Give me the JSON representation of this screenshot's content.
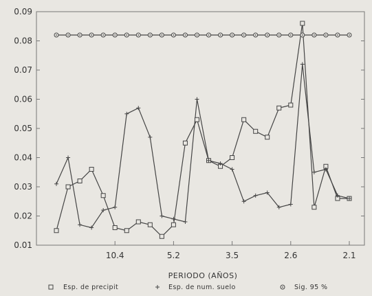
{
  "chart_data": {
    "type": "line",
    "xlabel": "PERIODO (AÑOS)",
    "ylabel": "",
    "ylim": [
      0.01,
      0.09
    ],
    "yticks": [
      "0.01",
      "0.02",
      "0.03",
      "0.04",
      "0.05",
      "0.06",
      "0.07",
      "0.08",
      "0.09"
    ],
    "xlim": [
      0,
      1
    ],
    "x_tick_labels": [
      {
        "label": "10.4",
        "pos": 0.2
      },
      {
        "label": "5.2",
        "pos": 0.4
      },
      {
        "label": "3.5",
        "pos": 0.6
      },
      {
        "label": "2.6",
        "pos": 0.8
      },
      {
        "label": "2.1",
        "pos": 1.0
      }
    ],
    "grid": false,
    "legend_position": "bottom",
    "series": [
      {
        "name": "Esp. de precipit",
        "marker": "square",
        "color": "#444444",
        "x": [
          0.0,
          0.04,
          0.08,
          0.12,
          0.16,
          0.2,
          0.24,
          0.28,
          0.32,
          0.36,
          0.4,
          0.44,
          0.48,
          0.52,
          0.56,
          0.6,
          0.64,
          0.68,
          0.72,
          0.76,
          0.8,
          0.84,
          0.88,
          0.92,
          0.96,
          1.0
        ],
        "values": [
          0.015,
          0.03,
          0.032,
          0.036,
          0.027,
          0.016,
          0.015,
          0.018,
          0.017,
          0.013,
          0.017,
          0.045,
          0.053,
          0.039,
          0.037,
          0.04,
          0.053,
          0.049,
          0.047,
          0.057,
          0.058,
          0.086,
          0.023,
          0.037,
          0.026,
          0.026
        ]
      },
      {
        "name": "Esp. de num. suelo",
        "marker": "plus",
        "color": "#444444",
        "x": [
          0.0,
          0.04,
          0.08,
          0.12,
          0.16,
          0.2,
          0.24,
          0.28,
          0.32,
          0.36,
          0.4,
          0.44,
          0.48,
          0.52,
          0.56,
          0.6,
          0.64,
          0.68,
          0.72,
          0.76,
          0.8,
          0.84,
          0.88,
          0.92,
          0.96,
          1.0
        ],
        "values": [
          0.031,
          0.04,
          0.017,
          0.016,
          0.022,
          0.023,
          0.055,
          0.057,
          0.047,
          0.02,
          0.019,
          0.018,
          0.06,
          0.039,
          0.038,
          0.036,
          0.025,
          0.027,
          0.028,
          0.023,
          0.024,
          0.072,
          0.035,
          0.036,
          0.027,
          0.026
        ]
      },
      {
        "name": "Sig. 95 %",
        "marker": "diamond",
        "color": "#444444",
        "x": [
          0.0,
          0.04,
          0.08,
          0.12,
          0.16,
          0.2,
          0.24,
          0.28,
          0.32,
          0.36,
          0.4,
          0.44,
          0.48,
          0.52,
          0.56,
          0.6,
          0.64,
          0.68,
          0.72,
          0.76,
          0.8,
          0.84,
          0.88,
          0.92,
          0.96,
          1.0
        ],
        "values": [
          0.082,
          0.082,
          0.082,
          0.082,
          0.082,
          0.082,
          0.082,
          0.082,
          0.082,
          0.082,
          0.082,
          0.082,
          0.082,
          0.082,
          0.082,
          0.082,
          0.082,
          0.082,
          0.082,
          0.082,
          0.082,
          0.082,
          0.082,
          0.082,
          0.082,
          0.082
        ]
      }
    ]
  }
}
